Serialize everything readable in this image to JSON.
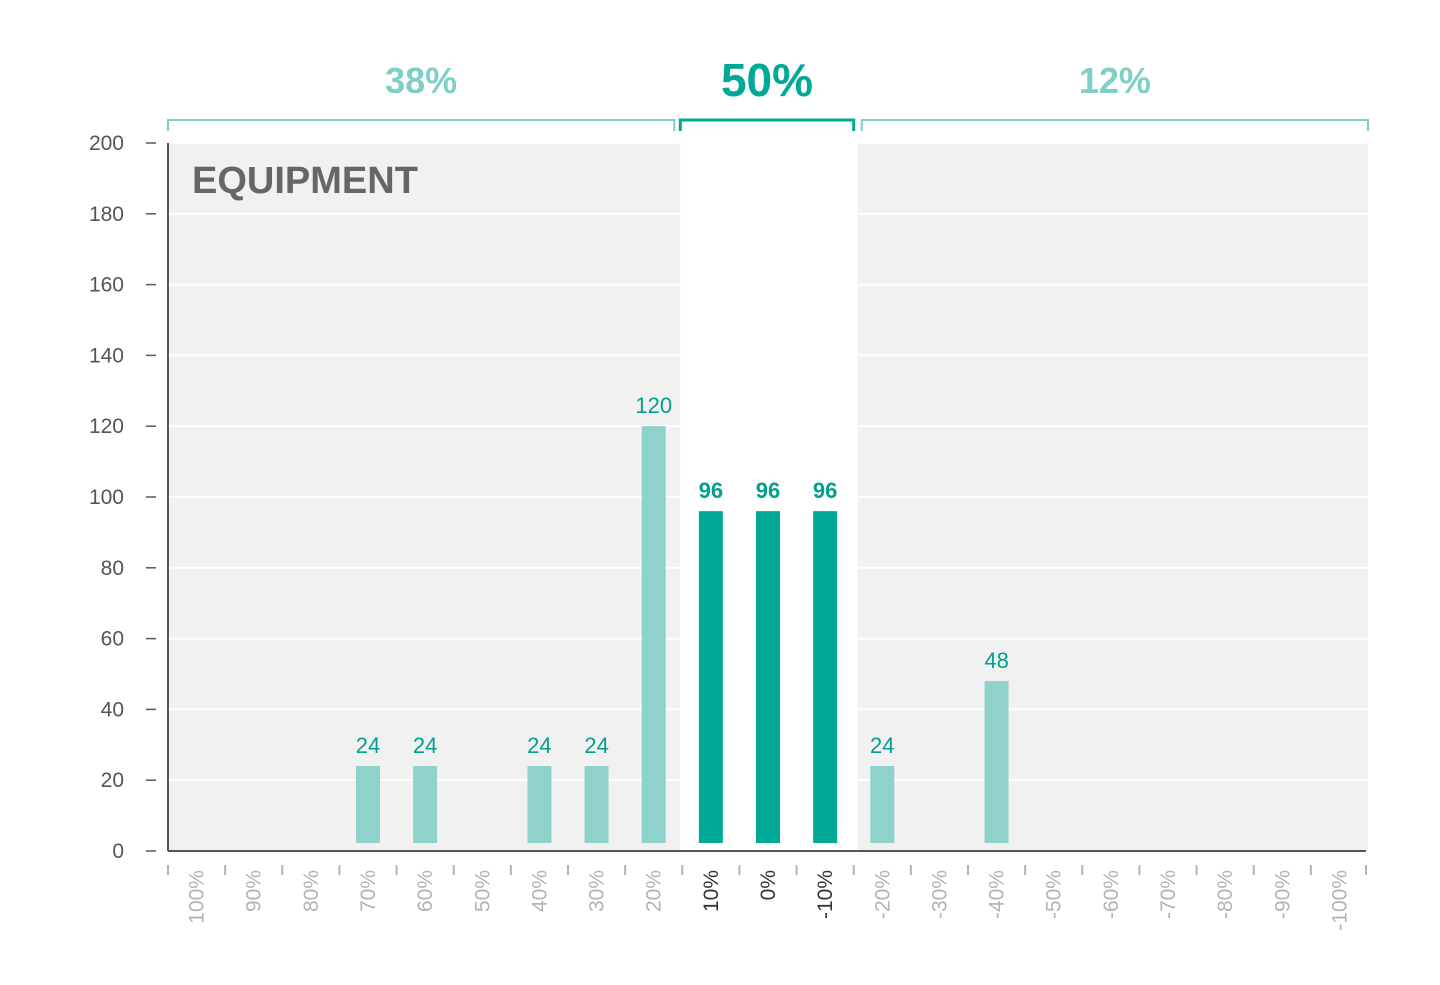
{
  "chart_data": {
    "type": "bar",
    "title": "EQUIPMENT",
    "xlabel": "",
    "ylabel": "",
    "ylim": [
      0,
      200
    ],
    "yticks": [
      0,
      20,
      40,
      60,
      80,
      100,
      120,
      140,
      160,
      180,
      200
    ],
    "categories": [
      "100%",
      "90%",
      "80%",
      "70%",
      "60%",
      "50%",
      "40%",
      "30%",
      "20%",
      "10%",
      "0%",
      "-10%",
      "-20%",
      "-30%",
      "-40%",
      "-50%",
      "-60%",
      "-70%",
      "-80%",
      "-90%",
      "-100%"
    ],
    "values": [
      0,
      0,
      0,
      24,
      24,
      0,
      24,
      24,
      120,
      96,
      96,
      96,
      24,
      0,
      48,
      0,
      0,
      0,
      0,
      0,
      0
    ],
    "data_labels": [
      "",
      "",
      "",
      "24",
      "24",
      "",
      "24",
      "24",
      "120",
      "96",
      "96",
      "96",
      "24",
      "",
      "48",
      "",
      "",
      "",
      "",
      "",
      ""
    ],
    "highlight_range": [
      "10%",
      "-10%"
    ],
    "grid": true,
    "groups": [
      {
        "label": "38%",
        "range": [
          "100%",
          "20%"
        ],
        "emphasis": false
      },
      {
        "label": "50%",
        "range": [
          "10%",
          "-10%"
        ],
        "emphasis": true
      },
      {
        "label": "12%",
        "range": [
          "-20%",
          "-100%"
        ],
        "emphasis": false
      }
    ],
    "colors": {
      "bar_light": "#8fd2cb",
      "bar_dark": "#00a896",
      "label_dark": "#00a08f",
      "bracket_light": "#7fcfc6",
      "panel_bg": "#f1f1f1",
      "grid": "#ffffff",
      "axis": "#555555",
      "tick_label": "#555555",
      "xtick_muted": "#b3b3b3",
      "xtick_strong": "#333333",
      "title": "#666666"
    }
  }
}
